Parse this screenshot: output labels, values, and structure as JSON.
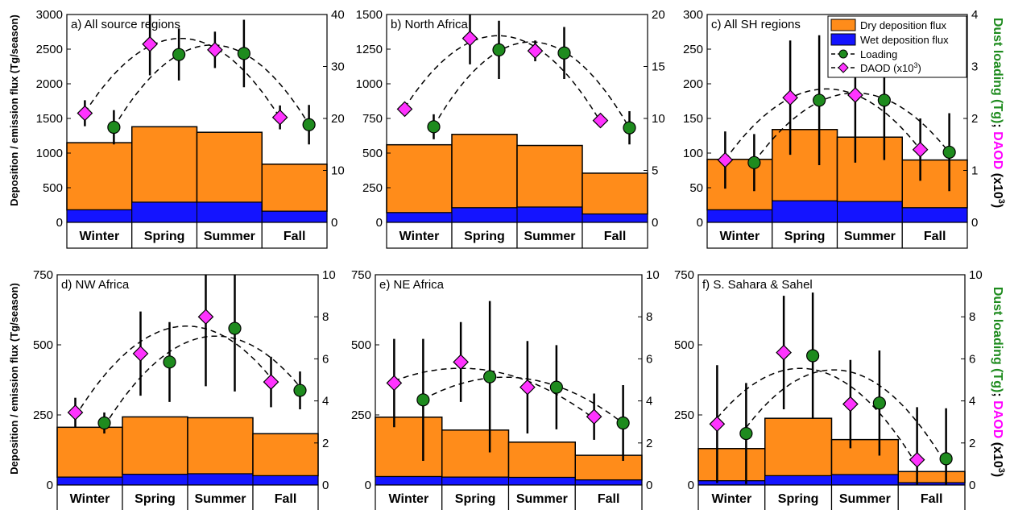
{
  "figure": {
    "ylabel_left": "Deposition / emission flux (Tg/season)",
    "ylabel_right": [
      {
        "text": "Dust loading (Tg)",
        "color": "#1e8b1e"
      },
      {
        "text": "; ",
        "color": "#000000"
      },
      {
        "text": "DAOD",
        "color": "#ff00ff"
      },
      {
        "text": " (x10",
        "color": "#000000"
      },
      {
        "text": "3",
        "color": "#000000",
        "sup": true
      },
      {
        "text": ")",
        "color": "#000000"
      }
    ],
    "legend": {
      "dry": "Dry deposition flux",
      "wet": "Wet deposition flux",
      "loading": "Loading",
      "daod": "DAOD (x10",
      "daod_sup": "3",
      "daod_end": ")"
    },
    "colors": {
      "dry": "#ff8c1a",
      "wet": "#1414ff",
      "loading": "#1e8b1e",
      "daod": "#ff33ff",
      "text_right_green": "#1e8b1e",
      "text_right_magenta": "#ff00ff"
    }
  },
  "chart_data": [
    {
      "type": "bar",
      "title": "a) All source regions",
      "categories": [
        "Winter",
        "Spring",
        "Summer",
        "Fall"
      ],
      "ylim": [
        0,
        3000
      ],
      "yticks": [
        0,
        500,
        1000,
        1500,
        2000,
        2500,
        3000
      ],
      "y2lim": [
        0,
        40
      ],
      "y2ticks": [
        0,
        10,
        20,
        30,
        40
      ],
      "series": [
        {
          "name": "Dry deposition flux",
          "axis": "left",
          "values": [
            970,
            1090,
            1010,
            680
          ]
        },
        {
          "name": "Wet deposition flux",
          "axis": "left",
          "values": [
            180,
            290,
            290,
            160
          ]
        },
        {
          "name": "Loading",
          "axis": "right",
          "values": [
            18.3,
            32.3,
            32.5,
            18.8
          ],
          "err": [
            3.3,
            5.0,
            6.5,
            3.8
          ]
        },
        {
          "name": "DAOD (x10^3)",
          "axis": "right",
          "values": [
            21.0,
            34.3,
            33.2,
            20.2
          ],
          "err": [
            2.5,
            6.0,
            3.5,
            2.3
          ]
        }
      ]
    },
    {
      "type": "bar",
      "title": "b) North Africa",
      "categories": [
        "Winter",
        "Spring",
        "Summer",
        "Fall"
      ],
      "ylim": [
        0,
        1500
      ],
      "yticks": [
        0,
        250,
        500,
        750,
        1000,
        1250,
        1500
      ],
      "y2lim": [
        0,
        20
      ],
      "y2ticks": [
        0,
        5,
        10,
        15,
        20
      ],
      "series": [
        {
          "name": "Dry deposition flux",
          "axis": "left",
          "values": [
            490,
            530,
            445,
            295
          ]
        },
        {
          "name": "Wet deposition flux",
          "axis": "left",
          "values": [
            70,
            105,
            110,
            60
          ]
        },
        {
          "name": "Loading",
          "axis": "right",
          "values": [
            9.2,
            16.6,
            16.3,
            9.1
          ],
          "err": [
            1.2,
            2.8,
            2.5,
            1.6
          ]
        },
        {
          "name": "DAOD (x10^3)",
          "axis": "right",
          "values": [
            10.9,
            17.7,
            16.5,
            9.8
          ],
          "err": [
            0.5,
            2.5,
            1.0,
            0.6
          ]
        }
      ]
    },
    {
      "type": "bar",
      "title": "c) All SH regions",
      "categories": [
        "Winter",
        "Spring",
        "Summer",
        "Fall"
      ],
      "ylim": [
        0,
        300
      ],
      "yticks": [
        0,
        50,
        100,
        150,
        200,
        250,
        300
      ],
      "y2lim": [
        0,
        4
      ],
      "y2ticks": [
        0,
        1,
        2,
        3,
        4
      ],
      "series": [
        {
          "name": "Dry deposition flux",
          "axis": "left",
          "values": [
            73,
            103,
            93,
            69
          ]
        },
        {
          "name": "Wet deposition flux",
          "axis": "left",
          "values": [
            18,
            31,
            30,
            21
          ]
        },
        {
          "name": "Loading",
          "axis": "right",
          "values": [
            1.15,
            2.35,
            2.35,
            1.35
          ],
          "err": [
            0.55,
            1.25,
            1.15,
            0.75
          ]
        },
        {
          "name": "DAOD (x10^3)",
          "axis": "right",
          "values": [
            1.2,
            2.4,
            2.45,
            1.4
          ],
          "err": [
            0.55,
            1.1,
            1.3,
            0.6
          ]
        }
      ]
    },
    {
      "type": "bar",
      "title": "d) NW Africa",
      "categories": [
        "Winter",
        "Spring",
        "Summer",
        "Fall"
      ],
      "ylim": [
        0,
        750
      ],
      "yticks": [
        0,
        250,
        500,
        750
      ],
      "y2lim": [
        0,
        10
      ],
      "y2ticks": [
        0,
        2,
        4,
        6,
        8,
        10
      ],
      "series": [
        {
          "name": "Dry deposition flux",
          "axis": "left",
          "values": [
            178,
            205,
            200,
            150
          ]
        },
        {
          "name": "Wet deposition flux",
          "axis": "left",
          "values": [
            28,
            38,
            40,
            33
          ]
        },
        {
          "name": "Loading",
          "axis": "right",
          "values": [
            2.95,
            5.85,
            7.45,
            4.5
          ],
          "err": [
            0.5,
            1.9,
            3.0,
            0.9
          ]
        },
        {
          "name": "DAOD (x10^3)",
          "axis": "right",
          "values": [
            3.45,
            6.25,
            8.0,
            4.9
          ],
          "err": [
            0.7,
            2.0,
            3.3,
            1.2
          ]
        }
      ]
    },
    {
      "type": "bar",
      "title": "e) NE Africa",
      "categories": [
        "Winter",
        "Spring",
        "Summer",
        "Fall"
      ],
      "ylim": [
        0,
        750
      ],
      "yticks": [
        0,
        250,
        500,
        750
      ],
      "y2lim": [
        0,
        10
      ],
      "y2ticks": [
        0,
        2,
        4,
        6,
        8,
        10
      ],
      "series": [
        {
          "name": "Dry deposition flux",
          "axis": "left",
          "values": [
            212,
            168,
            126,
            88
          ]
        },
        {
          "name": "Wet deposition flux",
          "axis": "left",
          "values": [
            30,
            28,
            27,
            18
          ]
        },
        {
          "name": "Loading",
          "axis": "right",
          "values": [
            4.05,
            5.15,
            4.65,
            2.95
          ],
          "err": [
            2.9,
            3.6,
            2.0,
            1.8
          ]
        },
        {
          "name": "DAOD (x10^3)",
          "axis": "right",
          "values": [
            4.85,
            5.85,
            4.65,
            3.25
          ],
          "err": [
            2.1,
            1.9,
            2.2,
            1.1
          ]
        }
      ]
    },
    {
      "type": "bar",
      "title": "f) S. Sahara & Sahel",
      "categories": [
        "Winter",
        "Spring",
        "Summer",
        "Fall"
      ],
      "ylim": [
        0,
        750
      ],
      "yticks": [
        0,
        250,
        500,
        750
      ],
      "y2lim": [
        0,
        10
      ],
      "y2ticks": [
        0,
        2,
        4,
        6,
        8,
        10
      ],
      "series": [
        {
          "name": "Dry deposition flux",
          "axis": "left",
          "values": [
            115,
            205,
            125,
            40
          ]
        },
        {
          "name": "Wet deposition flux",
          "axis": "left",
          "values": [
            15,
            33,
            37,
            8
          ]
        },
        {
          "name": "Loading",
          "axis": "right",
          "values": [
            2.45,
            6.15,
            3.9,
            1.25
          ],
          "err": [
            2.4,
            3.0,
            2.5,
            2.4
          ]
        },
        {
          "name": "DAOD (x10^3)",
          "axis": "right",
          "values": [
            2.9,
            6.3,
            3.85,
            1.2
          ],
          "err": [
            2.8,
            2.7,
            2.1,
            2.5
          ]
        }
      ]
    }
  ]
}
